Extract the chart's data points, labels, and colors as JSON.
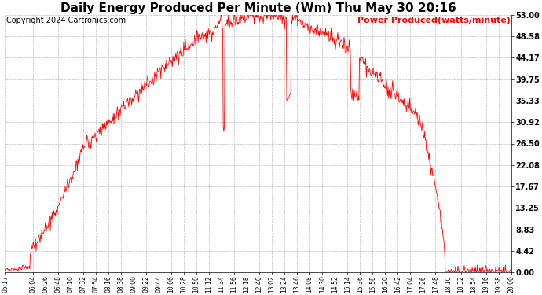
{
  "title": "Daily Energy Produced Per Minute (Wm) Thu May 30 20:16",
  "copyright": "Copyright 2024 Cartronics.com",
  "legend_label": "Power Produced(watts/minute)",
  "legend_color": "#FF0000",
  "line_color": "#FF0000",
  "background_color": "#FFFFFF",
  "grid_color": "#BBBBBB",
  "title_fontsize": 11,
  "copyright_fontsize": 7,
  "legend_fontsize": 8,
  "ytick_labels": [
    "0.00",
    "4.42",
    "8.83",
    "13.25",
    "17.67",
    "22.08",
    "26.50",
    "30.92",
    "35.33",
    "39.75",
    "44.17",
    "48.58",
    "53.00"
  ],
  "ymax": 53.0,
  "ymin": 0.0,
  "xtick_labels": [
    "05:17",
    "06:04",
    "06:26",
    "06:48",
    "07:10",
    "07:32",
    "07:54",
    "08:16",
    "08:38",
    "09:00",
    "09:22",
    "09:44",
    "10:06",
    "10:28",
    "10:50",
    "11:12",
    "11:34",
    "11:56",
    "12:18",
    "12:40",
    "13:02",
    "13:24",
    "13:46",
    "14:08",
    "14:30",
    "14:52",
    "15:14",
    "15:36",
    "15:58",
    "16:20",
    "16:42",
    "17:04",
    "17:26",
    "17:48",
    "18:10",
    "18:32",
    "18:54",
    "19:16",
    "19:38",
    "20:00"
  ]
}
